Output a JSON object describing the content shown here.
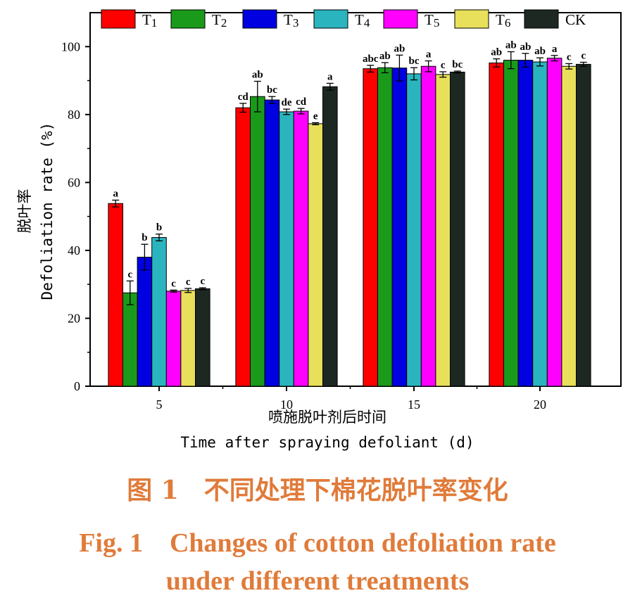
{
  "chart_data": {
    "type": "bar",
    "categories": [
      "5",
      "10",
      "15",
      "20"
    ],
    "ylabel_cn": "脱叶率",
    "ylabel_en": "Defoliation rate (%)",
    "xlabel_cn": "喷施脱叶剂后时间",
    "xlabel_en": "Time after spraying defoliant (d)",
    "ylim": [
      0,
      110
    ],
    "yticks": [
      0,
      20,
      40,
      60,
      80,
      100
    ],
    "legend_position": "top",
    "series": [
      {
        "name": "T1",
        "color": "#ff0000",
        "values": [
          53.8,
          82.0,
          93.5,
          95.2
        ],
        "errors": [
          1.0,
          1.3,
          1.0,
          1.2
        ],
        "sig": [
          "a",
          "cd",
          "abc",
          "ab"
        ]
      },
      {
        "name": "T2",
        "color": "#1a9a1a",
        "values": [
          27.5,
          85.3,
          93.8,
          96.0
        ],
        "errors": [
          3.5,
          4.5,
          1.5,
          2.5
        ],
        "sig": [
          "c",
          "ab",
          "ab",
          "ab"
        ]
      },
      {
        "name": "T3",
        "color": "#0000e0",
        "values": [
          38.0,
          84.3,
          93.7,
          96.0
        ],
        "errors": [
          3.8,
          1.0,
          3.8,
          2.0
        ],
        "sig": [
          "b",
          "bc",
          "ab",
          "ab"
        ]
      },
      {
        "name": "T4",
        "color": "#2ab5be",
        "values": [
          43.8,
          80.8,
          92.0,
          95.5
        ],
        "errors": [
          1.0,
          0.8,
          1.8,
          1.2
        ],
        "sig": [
          "b",
          "de",
          "bc",
          "ab"
        ]
      },
      {
        "name": "T5",
        "color": "#ff00ff",
        "values": [
          28.0,
          81.0,
          94.2,
          96.6
        ],
        "errors": [
          0.3,
          0.8,
          1.6,
          0.8
        ],
        "sig": [
          "c",
          "cd",
          "a",
          "a"
        ]
      },
      {
        "name": "T6",
        "color": "#e8e05a",
        "values": [
          28.2,
          77.3,
          91.8,
          94.2
        ],
        "errors": [
          0.6,
          0.3,
          0.8,
          0.8
        ],
        "sig": [
          "c",
          "e",
          "c",
          "c"
        ]
      },
      {
        "name": "CK",
        "color": "#1e2822",
        "values": [
          28.7,
          88.2,
          92.5,
          94.8
        ],
        "errors": [
          0.3,
          1.0,
          0.3,
          0.6
        ],
        "sig": [
          "c",
          "a",
          "bc",
          "c"
        ]
      }
    ]
  },
  "caption": {
    "cn": "图 1　不同处理下棉花脱叶率变化",
    "en_line1": "Fig. 1　Changes of cotton defoliation rate",
    "en_line2": "under different treatments"
  }
}
